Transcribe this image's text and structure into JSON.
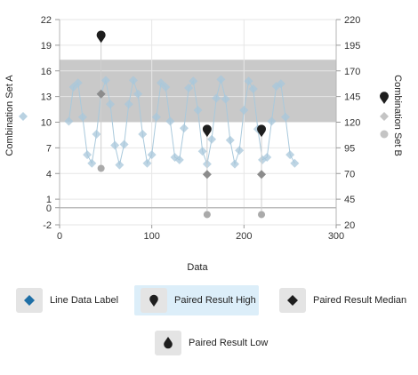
{
  "chart_data": {
    "type": "scatter",
    "xlabel": "Data",
    "ylabel_left": "Combination Set A",
    "ylabel_right": "Combination Set B",
    "xlim": [
      0,
      300
    ],
    "ylim_left": [
      -2,
      22
    ],
    "ylim_right": [
      20,
      220
    ],
    "x_ticks": [
      0,
      100,
      200,
      300
    ],
    "y_ticks_left": [
      -2,
      0,
      1,
      4,
      7,
      10,
      13,
      16,
      19,
      22
    ],
    "y_ticks_right": [
      20,
      45,
      70,
      95,
      120,
      145,
      170,
      195,
      220
    ],
    "band_left": [
      10,
      17.3
    ],
    "grid": true,
    "colors": {
      "line_series": "#a9c9dc",
      "diamond": "#a8c7db",
      "band": "#c9c9c9",
      "high": "#1e1e1e",
      "median": "#8c8c8c",
      "low": "#aaaaaa",
      "legend_line_icon": "#1f6fa6"
    },
    "series": [
      {
        "name": "Line Data Label",
        "x": [
          10,
          15,
          20,
          25,
          30,
          35,
          40,
          45,
          50,
          55,
          60,
          65,
          70,
          75,
          80,
          85,
          90,
          95,
          100,
          105,
          110,
          115,
          120,
          125,
          130,
          135,
          140,
          145,
          150,
          155,
          160,
          165,
          170,
          175,
          180,
          185,
          190,
          195,
          200,
          205,
          210,
          215,
          220,
          225,
          230,
          235,
          240,
          245,
          250,
          255
        ],
        "y": [
          10.1,
          14.1,
          14.6,
          10.6,
          6.2,
          5.2,
          8.6,
          13.3,
          14.9,
          12.1,
          7.3,
          5.0,
          7.4,
          12.1,
          14.9,
          13.3,
          8.6,
          5.2,
          6.2,
          10.6,
          14.6,
          14.1,
          10.1,
          5.9,
          5.6,
          9.3,
          14.0,
          14.8,
          11.4,
          6.6,
          5.1,
          8.0,
          12.8,
          15.0,
          12.7,
          7.9,
          5.1,
          6.7,
          11.4,
          14.8,
          13.9,
          9.2,
          5.6,
          5.9,
          10.1,
          14.2,
          14.5,
          10.6,
          6.2,
          5.2
        ]
      }
    ],
    "paired": [
      {
        "x": 45,
        "high": 19.9,
        "median": 13.3,
        "low": 4.6
      },
      {
        "x": 160,
        "high": 8.9,
        "median": 3.9,
        "low": -0.8
      },
      {
        "x": 219,
        "high": 8.9,
        "median": 3.9,
        "low": -0.8
      }
    ],
    "legend": {
      "items": [
        {
          "label": "Line Data Label",
          "icon": "diamond-icon"
        },
        {
          "label": "Paired Result High",
          "icon": "pin-icon"
        },
        {
          "label": "Paired Result Median",
          "icon": "diamond-icon"
        },
        {
          "label": "Paired Result Low",
          "icon": "drop-icon"
        }
      ]
    }
  }
}
